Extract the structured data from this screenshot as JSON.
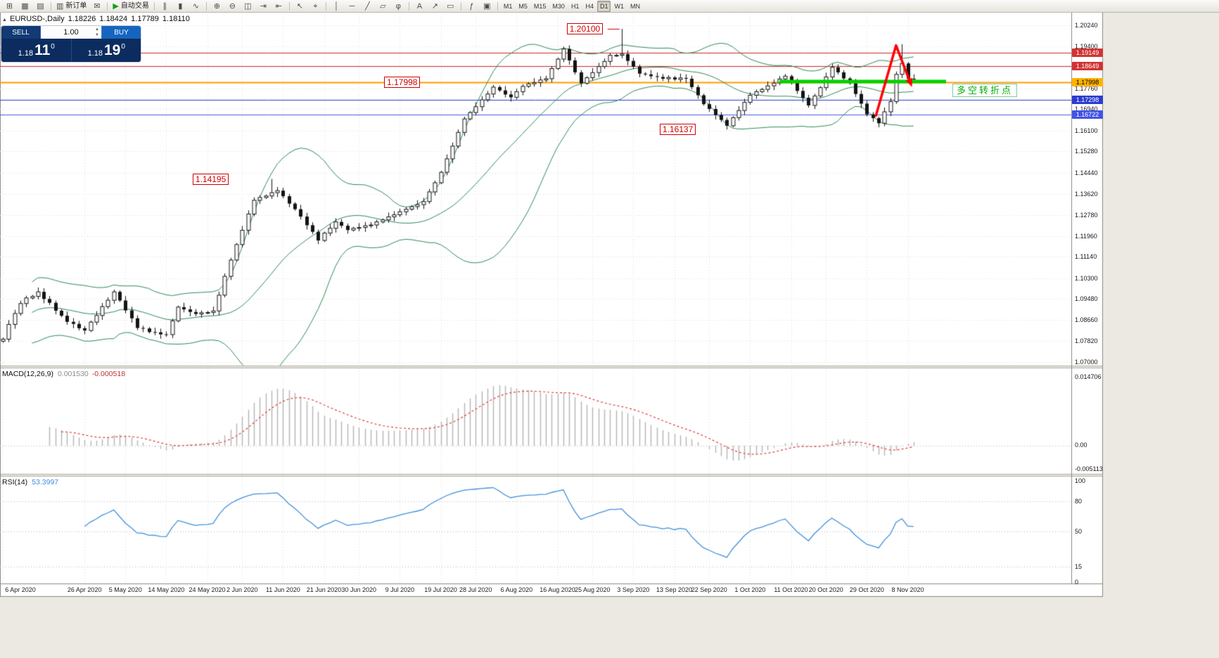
{
  "toolbar": {
    "groups": [
      {
        "items": [
          {
            "name": "new-chart",
            "glyph": "⊞"
          },
          {
            "name": "chart-profiles",
            "glyph": "▦"
          },
          {
            "name": "market-watch",
            "glyph": "▤"
          }
        ]
      },
      {
        "items": [
          {
            "name": "new-order",
            "glyph": "▥",
            "label": "新订单"
          },
          {
            "name": "mail",
            "glyph": "✉"
          }
        ]
      },
      {
        "items": [
          {
            "name": "autotrading",
            "glyph": "▶",
            "glyph_color": "#1a9c1a",
            "label": "自动交易"
          }
        ]
      },
      {
        "items": [
          {
            "name": "bar-chart",
            "glyph": "∥"
          },
          {
            "name": "candlestick-chart",
            "glyph": "▮"
          },
          {
            "name": "line-chart",
            "glyph": "∿"
          }
        ]
      },
      {
        "items": [
          {
            "name": "zoom-in",
            "glyph": "⊕"
          },
          {
            "name": "zoom-out",
            "glyph": "⊖"
          },
          {
            "name": "tile-windows",
            "glyph": "◫"
          },
          {
            "name": "auto-scroll",
            "glyph": "⇥"
          },
          {
            "name": "chart-shift",
            "glyph": "⇤"
          }
        ]
      },
      {
        "items": [
          {
            "name": "cursor",
            "glyph": "↖"
          },
          {
            "name": "crosshair",
            "glyph": "⌖"
          }
        ]
      },
      {
        "items": [
          {
            "name": "vertical-line",
            "glyph": "│"
          },
          {
            "name": "horizontal-line",
            "glyph": "─"
          },
          {
            "name": "trendline",
            "glyph": "╱"
          },
          {
            "name": "equidistant-channel",
            "glyph": "▱"
          },
          {
            "name": "fibonacci",
            "glyph": "φ"
          }
        ]
      },
      {
        "items": [
          {
            "name": "text-label",
            "glyph": "A"
          },
          {
            "name": "arrow-object",
            "glyph": "↗"
          },
          {
            "name": "shapes",
            "glyph": "▭"
          }
        ]
      },
      {
        "items": [
          {
            "name": "indicators",
            "glyph": "ƒ"
          },
          {
            "name": "templates",
            "glyph": "▣"
          }
        ]
      }
    ],
    "timeframes": [
      "M1",
      "M5",
      "M15",
      "M30",
      "H1",
      "H4",
      "D1",
      "W1",
      "MN"
    ],
    "active_timeframe": "D1",
    "overflow_glyph": "»"
  },
  "window": {
    "collapse_glyph": "▲",
    "symbol": "EURUSD-,Daily",
    "open": "1.18226",
    "high": "1.18424",
    "low": "1.17789",
    "close": "1.18110"
  },
  "one_click": {
    "sell_label": "SELL",
    "buy_label": "BUY",
    "volume": "1.00",
    "spin_up": "▲",
    "spin_down": "▼",
    "sell": {
      "prefix": "1.18",
      "pips": "11",
      "sup": "0"
    },
    "buy": {
      "prefix": "1.18",
      "pips": "19",
      "sup": "0"
    }
  },
  "chart_data": {
    "type": "candlestick",
    "symbol": "EURUSD",
    "timeframe": "Daily",
    "ohlc_display": {
      "open": "1.18226",
      "high": "1.18424",
      "low": "1.17789",
      "close": "1.18110"
    },
    "closes": [
      1.079,
      1.0848,
      1.0891,
      1.093,
      1.0952,
      1.0958,
      1.0976,
      1.0948,
      1.0933,
      1.0902,
      1.0882,
      1.0858,
      1.085,
      1.0833,
      1.0824,
      1.0857,
      1.0883,
      1.0918,
      1.0943,
      1.0976,
      1.0942,
      1.0903,
      1.0872,
      1.0834,
      1.0832,
      1.0818,
      1.0817,
      1.0809,
      1.0808,
      1.0862,
      1.0916,
      1.0907,
      1.0897,
      1.0889,
      1.0894,
      1.0895,
      1.0901,
      1.0963,
      1.1037,
      1.1101,
      1.1162,
      1.1218,
      1.1282,
      1.1336,
      1.1347,
      1.1353,
      1.1366,
      1.1374,
      1.1352,
      1.1323,
      1.1301,
      1.1272,
      1.1238,
      1.1212,
      1.1178,
      1.1207,
      1.1226,
      1.1251,
      1.1236,
      1.1219,
      1.1226,
      1.1229,
      1.1236,
      1.1239,
      1.1251,
      1.1259,
      1.1271,
      1.1279,
      1.1291,
      1.1301,
      1.1311,
      1.1319,
      1.1331,
      1.1369,
      1.1405,
      1.1446,
      1.1499,
      1.1549,
      1.1603,
      1.1656,
      1.1681,
      1.1704,
      1.1731,
      1.1754,
      1.1781,
      1.1768,
      1.1752,
      1.1741,
      1.1763,
      1.1784,
      1.1794,
      1.1799,
      1.1809,
      1.1814,
      1.1854,
      1.1891,
      1.1931,
      1.1886,
      1.1839,
      1.1796,
      1.1818,
      1.1838,
      1.1862,
      1.1882,
      1.1906,
      1.1906,
      1.1911,
      1.1884,
      1.1861,
      1.1834,
      1.1831,
      1.1824,
      1.1821,
      1.1814,
      1.1819,
      1.1811,
      1.1817,
      1.1814,
      1.1781,
      1.1749,
      1.1714,
      1.1695,
      1.1671,
      1.1652,
      1.1629,
      1.1661,
      1.1689,
      1.1721,
      1.1749,
      1.1763,
      1.1772,
      1.1786,
      1.1797,
      1.1813,
      1.1824,
      1.1797,
      1.1766,
      1.1739,
      1.1709,
      1.1746,
      1.1779,
      1.1821,
      1.1859,
      1.1839,
      1.1815,
      1.1796,
      1.1754,
      1.1716,
      1.1674,
      1.1659,
      1.1639,
      1.1684,
      1.1724,
      1.1831,
      1.1874,
      1.1814,
      1.1811
    ],
    "wick_overrides": [
      {
        "i": 46,
        "high": 1.142
      },
      {
        "i": 96,
        "high": 1.194
      },
      {
        "i": 106,
        "high": 1.201
      },
      {
        "i": 124,
        "low": 1.1614
      },
      {
        "i": 150,
        "low": 1.1623
      },
      {
        "i": 154,
        "high": 1.195
      }
    ],
    "y_ticks": [
      "1.20240",
      "1.19400",
      "1.18580",
      "1.17760",
      "1.16940",
      "1.16100",
      "1.15280",
      "1.14440",
      "1.13620",
      "1.12780",
      "1.11960",
      "1.11140",
      "1.10300",
      "1.09480",
      "1.08660",
      "1.07820",
      "1.07000"
    ],
    "x_ticks": [
      {
        "i": 0,
        "label": "6 Apr 2020"
      },
      {
        "i": 14,
        "label": "26 Apr 2020"
      },
      {
        "i": 21,
        "label": "5 May 2020"
      },
      {
        "i": 28,
        "label": "14 May 2020"
      },
      {
        "i": 35,
        "label": "24 May 2020"
      },
      {
        "i": 41,
        "label": "2 Jun 2020"
      },
      {
        "i": 48,
        "label": "11 Jun 2020"
      },
      {
        "i": 55,
        "label": "21 Jun 2020"
      },
      {
        "i": 61,
        "label": "30 Jun 2020"
      },
      {
        "i": 68,
        "label": "9 Jul 2020"
      },
      {
        "i": 75,
        "label": "19 Jul 2020"
      },
      {
        "i": 81,
        "label": "28 Jul 2020"
      },
      {
        "i": 88,
        "label": "6 Aug 2020"
      },
      {
        "i": 95,
        "label": "16 Aug 2020"
      },
      {
        "i": 101,
        "label": "25 Aug 2020"
      },
      {
        "i": 108,
        "label": "3 Sep 2020"
      },
      {
        "i": 115,
        "label": "13 Sep 2020"
      },
      {
        "i": 121,
        "label": "22 Sep 2020"
      },
      {
        "i": 128,
        "label": "1 Oct 2020"
      },
      {
        "i": 135,
        "label": "11 Oct 2020"
      },
      {
        "i": 141,
        "label": "20 Oct 2020"
      },
      {
        "i": 148,
        "label": "29 Oct 2020"
      },
      {
        "i": 155,
        "label": "8 Nov 2020"
      }
    ],
    "price_lines": [
      {
        "price": 1.19149,
        "label": "1.19149",
        "color": "#cc2a2a",
        "badge_bg": "#d23333",
        "badge_fg": "#ffffff",
        "width": 1
      },
      {
        "price": 1.18649,
        "label": "1.18649",
        "color": "#cc2a2a",
        "badge_bg": "#d23333",
        "badge_fg": "#ffffff",
        "width": 1
      },
      {
        "price": 1.17998,
        "label": "1.17998",
        "color": "#ff9d00",
        "badge_bg": "#ffb300",
        "badge_fg": "#000000",
        "width": 2
      },
      {
        "price": 1.17298,
        "label": "1.17298",
        "color": "#2b3cd0",
        "badge_bg": "#2b3cd0",
        "badge_fg": "#ffffff",
        "width": 1
      },
      {
        "price": 1.16722,
        "label": "1.16722",
        "color": "#4a5ae8",
        "badge_bg": "#4353e8",
        "badge_fg": "#ffffff",
        "width": 1
      }
    ],
    "callouts": [
      {
        "text": "1.20100",
        "i": 106,
        "price": 1.201,
        "dx": -78,
        "connector": true
      },
      {
        "text": "1.17998",
        "i": 67,
        "price": 1.17998,
        "dx": -14
      },
      {
        "text": "1.16137",
        "i": 113,
        "price": 1.16137,
        "dx": -4
      },
      {
        "text": "1.14195",
        "i": 33,
        "price": 1.14195,
        "dx": -4
      }
    ],
    "green_level": {
      "price": 1.1803,
      "i_start": 133,
      "x_end": 1345,
      "label": "多空转折点"
    },
    "zigzag": {
      "points": [
        {
          "i": 149.5,
          "price": 1.1665
        },
        {
          "i": 153,
          "price": 1.1945
        },
        {
          "i": 155.3,
          "price": 1.1807
        }
      ]
    },
    "bollinger": {
      "period": 20,
      "deviation": 2
    },
    "macd": {
      "name": "MACD(12,26,9)",
      "value_main": "0.001530",
      "value_signal": "-0.000518",
      "fast": 12,
      "slow": 26,
      "signal": 9,
      "scale": [
        "0.014706",
        "0.00",
        "-0.005113"
      ]
    },
    "rsi": {
      "name": "RSI(14)",
      "value": "53.3997",
      "period": 14,
      "scale": [
        "100",
        "80",
        "50",
        "15",
        "0"
      ],
      "levels": [
        80,
        50,
        15
      ]
    },
    "colors": {
      "bull": "#ffffff",
      "bear": "#141414",
      "wick": "#141414",
      "bollinger": "#2e8b57",
      "macd_hist": "#b4b4b4",
      "macd_signal": "#e23a3a",
      "rsi": "#3f8fdd",
      "green_line": "#00d200",
      "zigzag": "#ff0000",
      "grid": "#dedede"
    }
  }
}
